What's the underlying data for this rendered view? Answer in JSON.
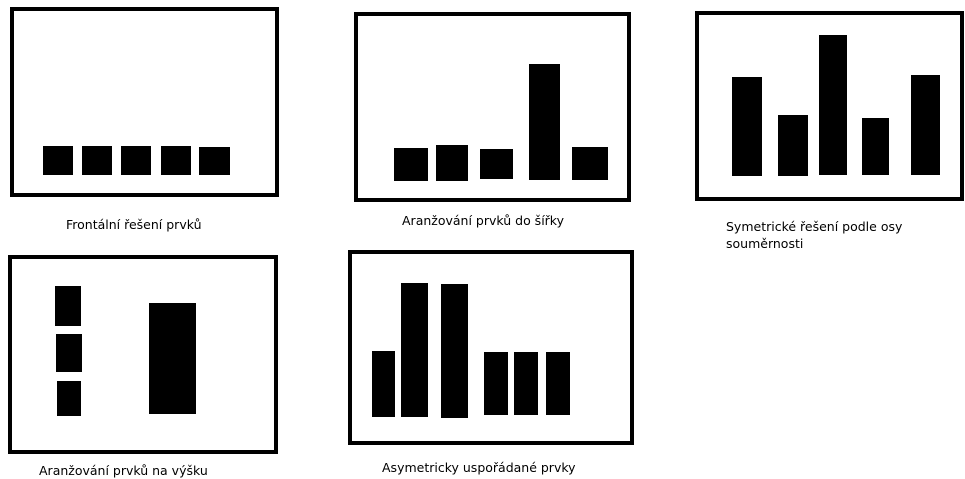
{
  "diagrams": [
    {
      "caption": "Frontální řešení prvků"
    },
    {
      "caption": "Aranžování prvků do šířky"
    },
    {
      "caption": "Symetrické řešení podle osy souměrnosti"
    },
    {
      "caption": "Aranžování prvků na výšku"
    },
    {
      "caption": "Asymetricky uspořádané prvky"
    }
  ],
  "colors": {
    "stroke": "#000000",
    "background": "#ffffff"
  }
}
